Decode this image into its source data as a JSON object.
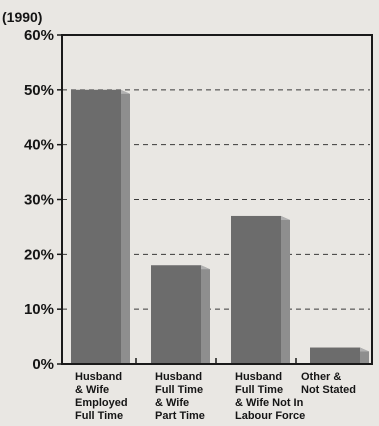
{
  "chart_data": {
    "type": "bar",
    "title": "(1990)",
    "xlabel": "",
    "ylabel": "",
    "ylim": [
      0,
      60
    ],
    "yticks": [
      0,
      10,
      20,
      30,
      40,
      50,
      60
    ],
    "ytick_format": "{v}%",
    "grid": "horizontal dashed",
    "categories": [
      [
        "Husband",
        "& Wife",
        "Employed",
        "Full Time"
      ],
      [
        "Husband",
        "Full Time",
        "& Wife",
        "Part Time"
      ],
      [
        "Husband",
        "Full Time",
        "& Wife Not In",
        "Labour Force"
      ],
      [
        "Other &",
        "Not Stated"
      ]
    ],
    "values": [
      50,
      18,
      27,
      3
    ],
    "colors": {
      "background": "#e9e7e3",
      "bar_front": "#6c6c6c",
      "bar_side": "#8e8e8e",
      "bar_top": "#b1b1b1",
      "axis": "#1a1a1a",
      "grid": "#3a3a3a",
      "text": "#151515"
    }
  }
}
